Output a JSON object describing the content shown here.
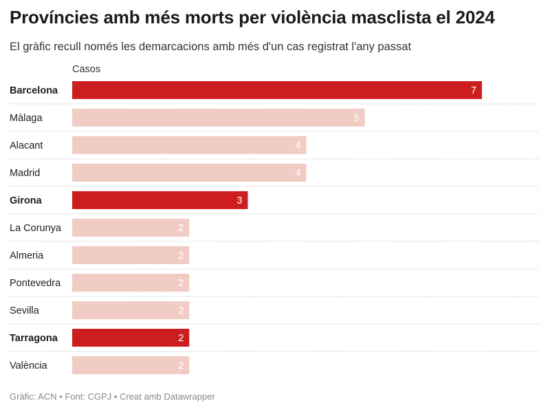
{
  "header": {
    "title": "Províncies amb més morts per violència masclista el 2024",
    "subtitle": "El gràfic recull només les demarcacions amb més d'un cas registrat l'any passat"
  },
  "footer": {
    "text": "Gràfic: ACN • Font: CGPJ • Creat amb Datawrapper"
  },
  "colors": {
    "highlight": "#cc1e1e",
    "base": "#f1ccc5",
    "separator": "#c8c8c8"
  },
  "chart_data": {
    "type": "bar",
    "orientation": "horizontal",
    "column_header": "Casos",
    "categories": [
      "Barcelona",
      "Màlaga",
      "Alacant",
      "Madrid",
      "Girona",
      "La Corunya",
      "Almeria",
      "Pontevedra",
      "Sevilla",
      "Tarragona",
      "València"
    ],
    "values": [
      7,
      5,
      4,
      4,
      3,
      2,
      2,
      2,
      2,
      2,
      2
    ],
    "highlighted": [
      "Barcelona",
      "Girona",
      "Tarragona"
    ],
    "xlim": [
      0,
      7
    ],
    "data_labels": true,
    "grid": false
  }
}
